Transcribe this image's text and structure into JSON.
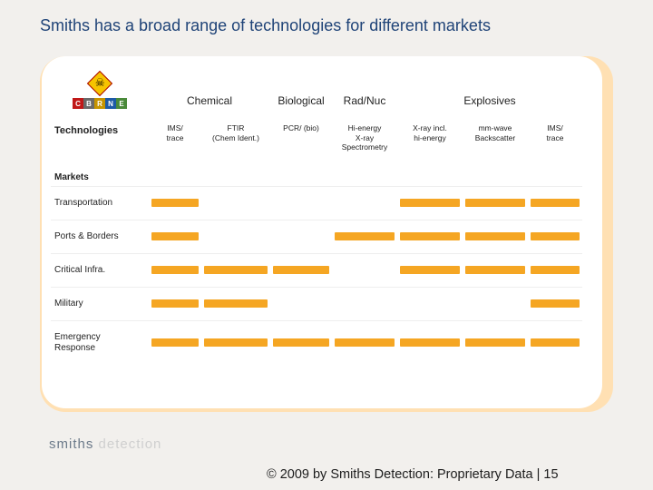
{
  "title": "Smiths has a broad range of technologies for different markets",
  "cbrne": {
    "letters": [
      "C",
      "B",
      "R",
      "N",
      "E"
    ],
    "colors": [
      "#c01818",
      "#6a6a6a",
      "#c69400",
      "#1e5aa6",
      "#4a8a3a"
    ]
  },
  "categories": [
    {
      "label": "Chemical",
      "span": 2
    },
    {
      "label": "Biological",
      "span": 1
    },
    {
      "label": "Rad/Nuc",
      "span": 1
    },
    {
      "label": "Explosives",
      "span": 3
    }
  ],
  "tech_header": "Technologies",
  "technologies": [
    "IMS/\ntrace",
    "FTIR\n(Chem Ident.)",
    "PCR/ (bio)",
    "Hi-energy\nX-ray\nSpectrometry",
    "X-ray incl.\nhi-energy",
    "mm-wave\nBackscatter",
    "IMS/\ntrace"
  ],
  "markets_header": "Markets",
  "bar_color": "#f5a623",
  "markets": [
    {
      "label": "Transportation",
      "cells": [
        1,
        0,
        0,
        0,
        1,
        1,
        1
      ]
    },
    {
      "label": "Ports & Borders",
      "cells": [
        1,
        0,
        0,
        1,
        1,
        1,
        1
      ]
    },
    {
      "label": "Critical Infra.",
      "cells": [
        1,
        1,
        1,
        0,
        1,
        1,
        1
      ]
    },
    {
      "label": "Military",
      "cells": [
        1,
        1,
        0,
        0,
        0,
        0,
        1
      ]
    },
    {
      "label": "Emergency\nResponse",
      "cells": [
        1,
        1,
        1,
        1,
        1,
        1,
        1
      ]
    }
  ],
  "footer_logo": {
    "part1": "smiths",
    "part2": " detection"
  },
  "copyright": "© 2009 by Smiths Detection: Proprietary Data   |  15"
}
